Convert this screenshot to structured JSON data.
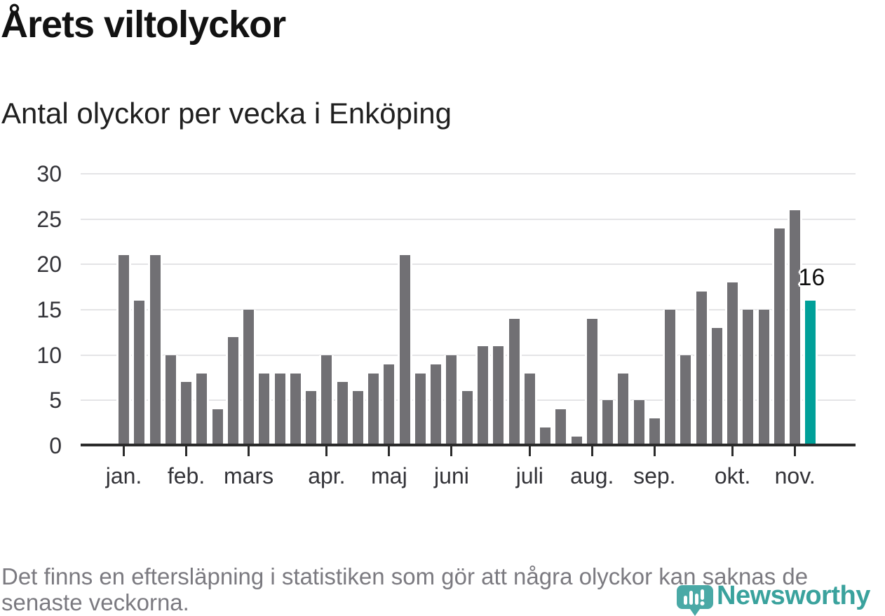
{
  "header": {
    "title": "Årets viltolyckor",
    "subtitle": "Antal olyckor per vecka i Enköping"
  },
  "footer": {
    "lines": [
      "Det finns en eftersläpning i statistiken som gör att några olyckor kan saknas de",
      "senaste veckorna."
    ]
  },
  "logo": {
    "text": "Newsworthy",
    "icon": "newsworthy-speech-bubble-bar-chart-icon"
  },
  "colors": {
    "bar": "#717074",
    "highlight": "#00a099",
    "grid": "#e4e4e6",
    "axis_line": "#2b2b2b",
    "tick_label": "#333338",
    "title_text": "#121212",
    "footer_text": "#7b7a80",
    "logo_teal": "#3aa29d",
    "logo_icon_teal": "#4aa9a6"
  },
  "chart_data": {
    "type": "bar",
    "title": "Årets viltolyckor",
    "subtitle": "Antal olyckor per vecka i Enköping",
    "xlabel": "",
    "ylabel": "Antal olyckor per vecka",
    "x_weeks": [
      1,
      2,
      3,
      4,
      5,
      6,
      7,
      8,
      9,
      10,
      11,
      12,
      13,
      14,
      15,
      16,
      17,
      18,
      19,
      20,
      21,
      22,
      23,
      24,
      25,
      26,
      27,
      28,
      29,
      30,
      31,
      32,
      33,
      34,
      35,
      36,
      37,
      38,
      39,
      40,
      41,
      42,
      43,
      44,
      45
    ],
    "values": [
      21,
      16,
      21,
      10,
      7,
      8,
      4,
      12,
      15,
      8,
      8,
      8,
      6,
      10,
      7,
      6,
      8,
      9,
      21,
      8,
      9,
      10,
      6,
      11,
      11,
      14,
      8,
      2,
      4,
      1,
      14,
      5,
      8,
      5,
      3,
      15,
      10,
      17,
      13,
      18,
      15,
      15,
      24,
      26,
      16
    ],
    "highlight_last_bar": true,
    "annotation": {
      "text": "16",
      "value": 16,
      "bar_week": 45
    },
    "yticks": [
      0,
      5,
      10,
      15,
      20,
      25,
      30
    ],
    "ylim": [
      0,
      30
    ],
    "grid": true,
    "legend": null,
    "month_ticks": [
      {
        "label": "jan.",
        "week": 1
      },
      {
        "label": "feb.",
        "week": 5
      },
      {
        "label": "mars",
        "week": 9
      },
      {
        "label": "apr.",
        "week": 14
      },
      {
        "label": "maj",
        "week": 18
      },
      {
        "label": "juni",
        "week": 22
      },
      {
        "label": "juli",
        "week": 27
      },
      {
        "label": "aug.",
        "week": 31
      },
      {
        "label": "sep.",
        "week": 35
      },
      {
        "label": "okt.",
        "week": 40
      },
      {
        "label": "nov.",
        "week": 44
      }
    ]
  }
}
